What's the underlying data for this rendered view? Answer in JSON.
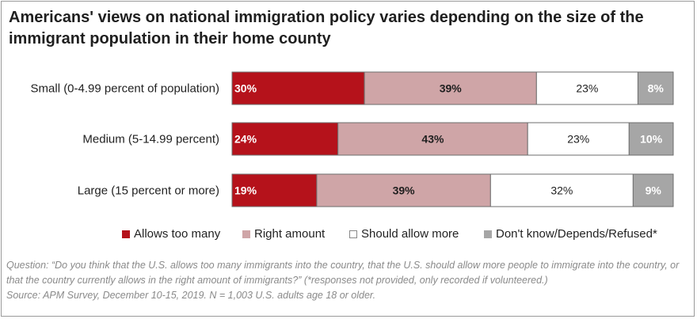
{
  "title": "Americans' views on national immigration policy varies depending on the size of the immigrant population in their home county",
  "colors": {
    "allows_too_many": "#b5121b",
    "right_amount": "#cfa5a7",
    "should_allow_more": "#ffffff",
    "dont_know": "#a6a6a6"
  },
  "chart_data": {
    "type": "bar",
    "orientation": "horizontal",
    "stacked": true,
    "xlim": [
      0,
      100
    ],
    "categories": [
      "Small (0-4.99 percent of population)",
      "Medium (5-14.99 percent)",
      "Large (15 percent or more)"
    ],
    "series": [
      {
        "name": "Allows too many",
        "values": [
          30,
          24,
          19
        ],
        "labels": [
          "30%",
          "24%",
          "19%"
        ]
      },
      {
        "name": "Right amount",
        "values": [
          39,
          43,
          39
        ],
        "labels": [
          "39%",
          "43%",
          "39%"
        ]
      },
      {
        "name": "Should allow more",
        "values": [
          23,
          23,
          32
        ],
        "labels": [
          "23%",
          "23%",
          "32%"
        ]
      },
      {
        "name": "Don't know/Depends/Refused*",
        "values": [
          8,
          10,
          9
        ],
        "labels": [
          "8%",
          "10%",
          "9%"
        ]
      }
    ],
    "legend_position": "bottom"
  },
  "footnote": {
    "question": "Question: “Do you think that the U.S. allows too many immigrants into the country, that the U.S. should allow more people to immigrate into the country, or that the country currently allows in the right amount of immigrants?” (*responses not provided, only recorded if volunteered.)",
    "source": "Source: APM Survey, December 10-15, 2019. N = 1,003 U.S. adults age 18 or older."
  }
}
